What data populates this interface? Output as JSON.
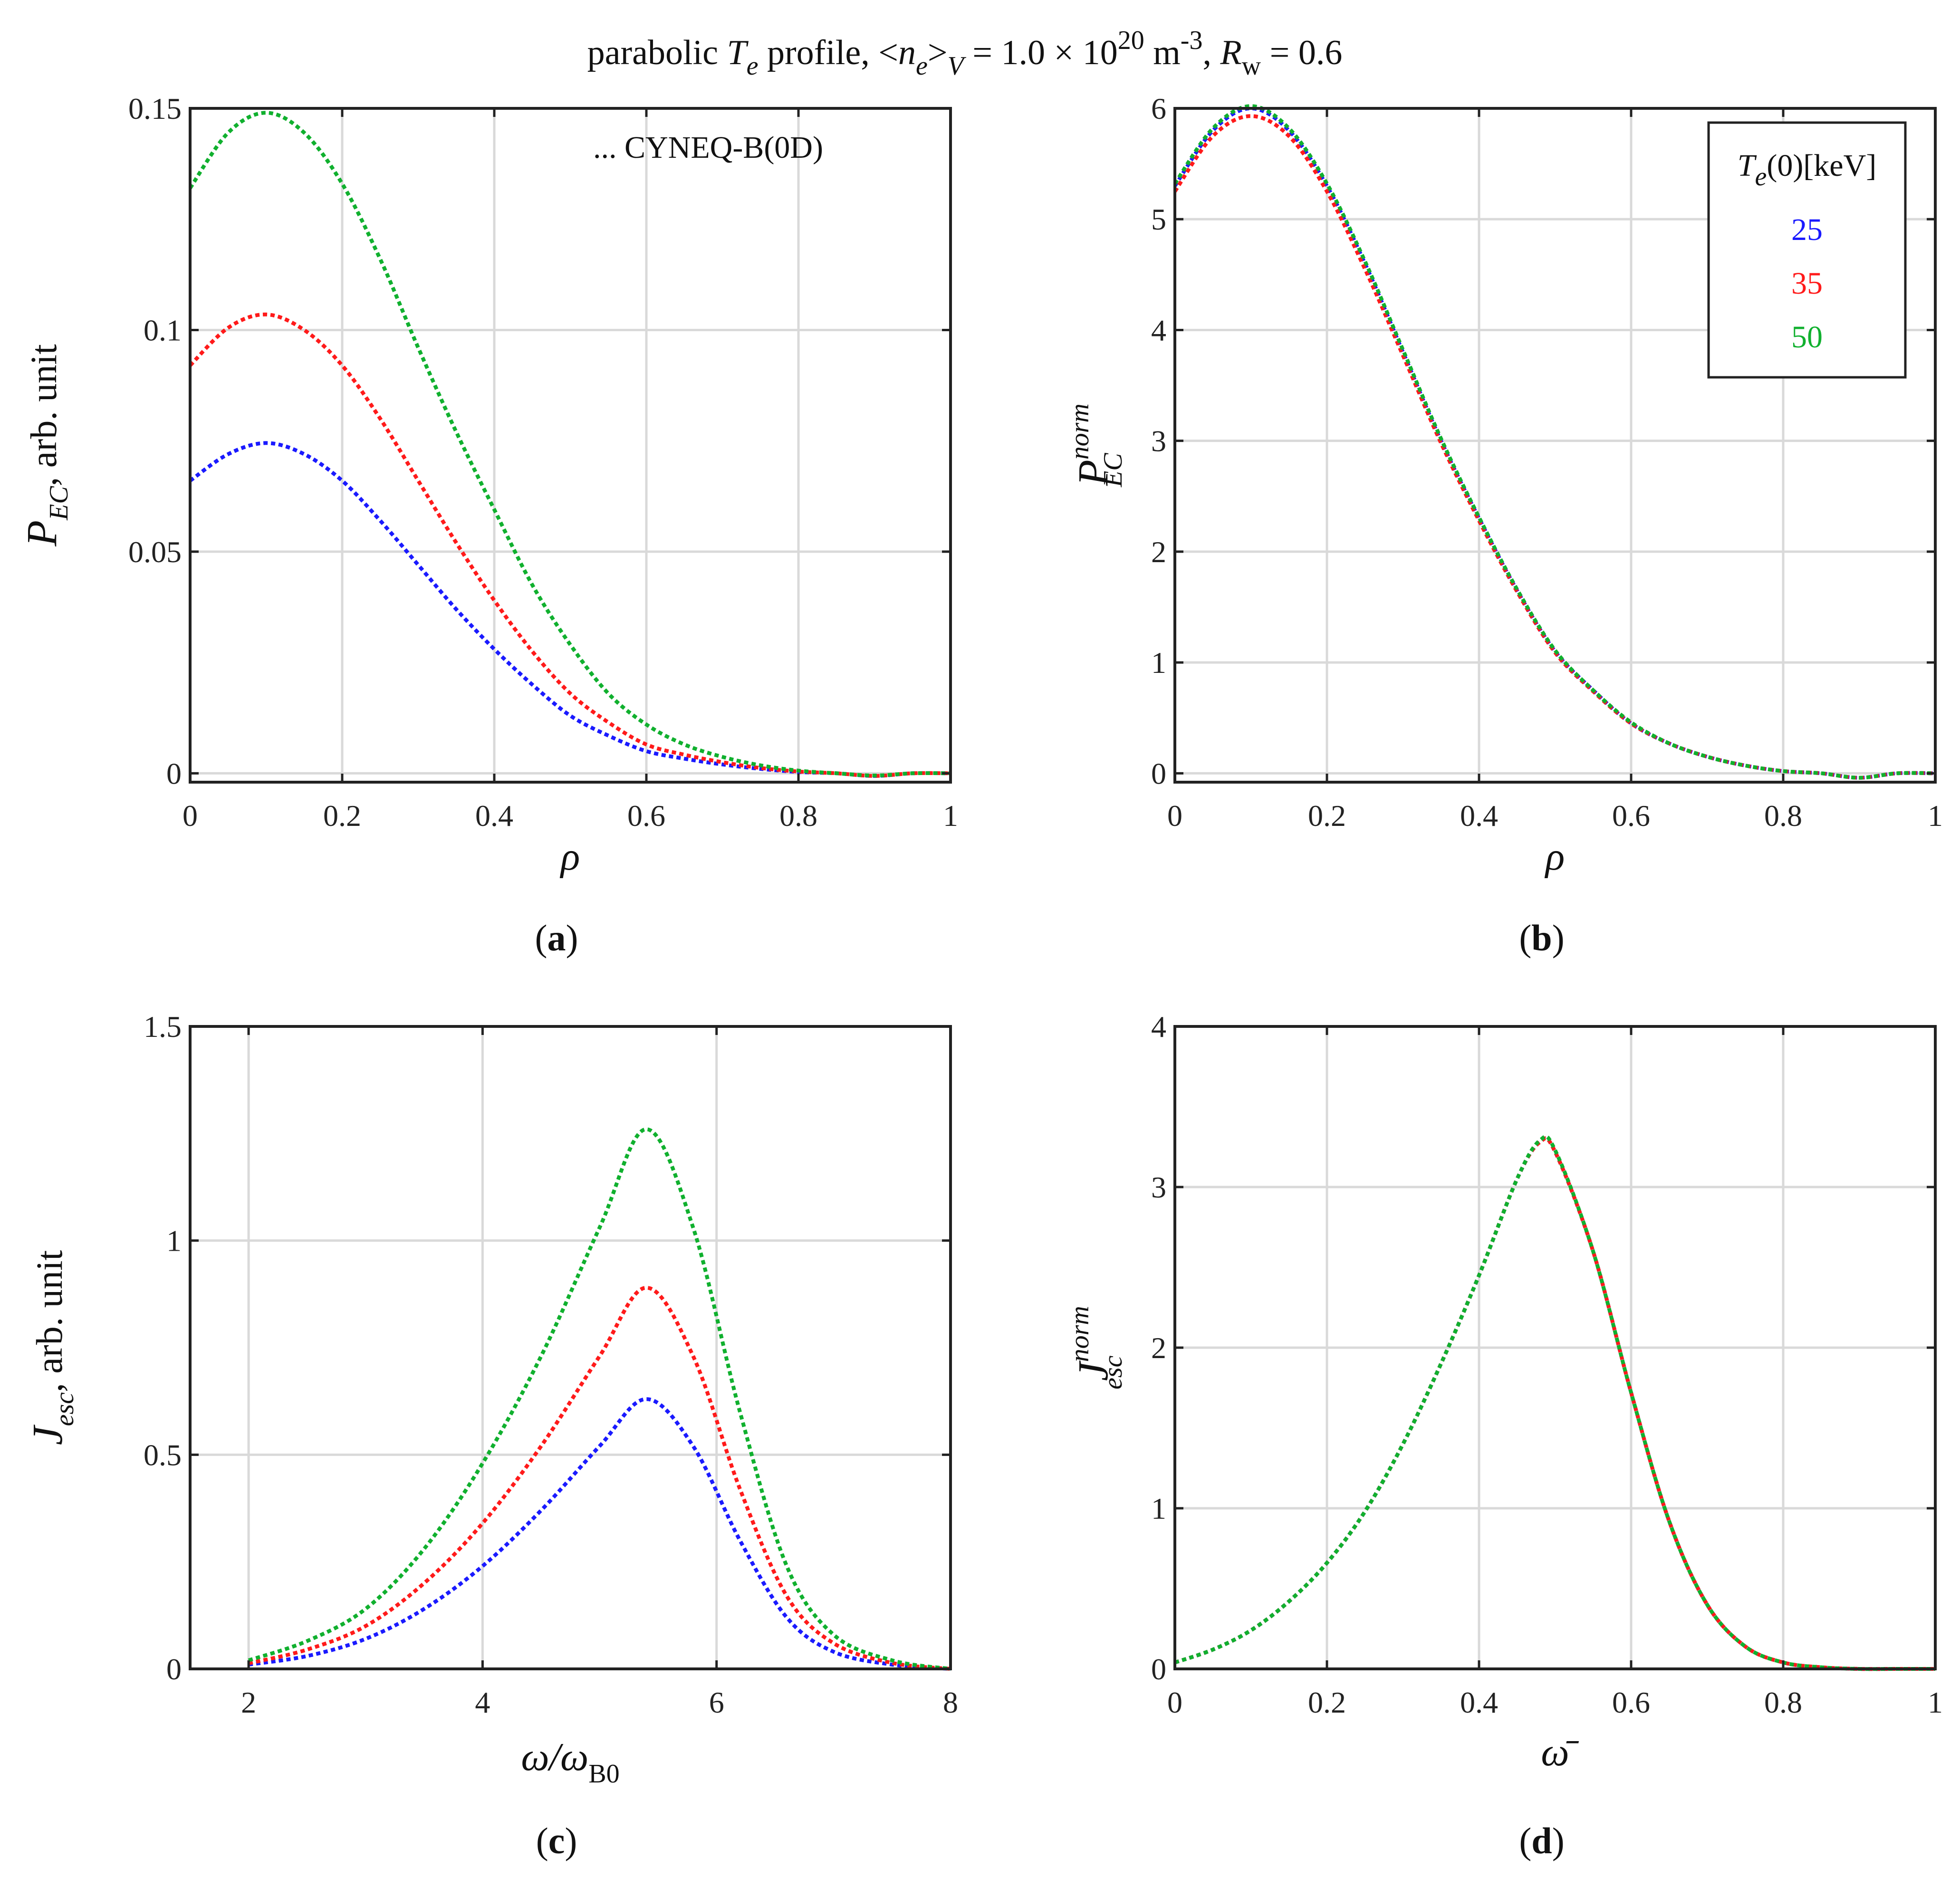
{
  "figure": {
    "title": "parabolic T_e profile, <n_e>_V = 1.0 × 10^20 m^-3, R_w = 0.6",
    "title_parts": {
      "p1": "parabolic ",
      "Te": "T",
      "Te_sub": "e",
      "p2": " profile, <",
      "ne": "n",
      "ne_sub": "e",
      "p3": ">",
      "V": "V",
      "p4": " = 1.0 × 10",
      "exp20": "20",
      "p5": " m",
      "expm3": "-3",
      "p6": ", ",
      "R": "R",
      "w": "w",
      "p7": " = 0.6"
    },
    "annotation_a": "... CYNEQ-B(0D)",
    "legend": {
      "title": "T_e(0)[keV]",
      "title_parts": {
        "T": "T",
        "sub": "e",
        "rest": "(0)[keV]"
      },
      "entries": [
        {
          "label": "25",
          "color": "#1a1aff"
        },
        {
          "label": "35",
          "color": "#ff1a1a"
        },
        {
          "label": "50",
          "color": "#10b02e"
        }
      ]
    },
    "captions": {
      "a": "a",
      "b": "b",
      "c": "c",
      "d": "d"
    }
  },
  "chart_data": [
    {
      "id": "a",
      "type": "line",
      "title": "",
      "xlabel": "ρ",
      "ylabel": "P_EC, arb. unit",
      "ylabel_parts": {
        "P": "P",
        "sub": "EC",
        "rest": ", arb. unit"
      },
      "xlim": [
        0,
        1
      ],
      "ylim": [
        -0.002,
        0.15
      ],
      "xticks": [
        0,
        0.2,
        0.4,
        0.6,
        0.8,
        1
      ],
      "xticklabels": [
        "0",
        "0.2",
        "0.4",
        "0.6",
        "0.8",
        "1"
      ],
      "yticks": [
        0,
        0.05,
        0.1,
        0.15
      ],
      "yticklabels": [
        "0",
        "0.05",
        "0.1",
        "0.15"
      ],
      "grid": true,
      "x": [
        0,
        0.05,
        0.1,
        0.15,
        0.2,
        0.25,
        0.3,
        0.35,
        0.4,
        0.45,
        0.5,
        0.55,
        0.6,
        0.65,
        0.7,
        0.75,
        0.8,
        0.85,
        0.9,
        0.95,
        1.0
      ],
      "series": [
        {
          "name": "25",
          "color": "#1a1aff",
          "values": [
            0.066,
            0.072,
            0.0745,
            0.072,
            0.066,
            0.057,
            0.047,
            0.037,
            0.028,
            0.02,
            0.013,
            0.0085,
            0.005,
            0.0033,
            0.002,
            0.001,
            0.0003,
            0.0,
            -0.0006,
            0.0,
            0.0
          ]
        },
        {
          "name": "35",
          "color": "#ff1a1a",
          "values": [
            0.092,
            0.1005,
            0.1035,
            0.1,
            0.092,
            0.08,
            0.066,
            0.052,
            0.039,
            0.0275,
            0.018,
            0.0115,
            0.0065,
            0.0042,
            0.0025,
            0.0012,
            0.0004,
            0.0,
            -0.0006,
            0.0,
            0.0
          ]
        },
        {
          "name": "50",
          "color": "#10b02e",
          "values": [
            0.132,
            0.1445,
            0.149,
            0.1445,
            0.133,
            0.116,
            0.096,
            0.077,
            0.0595,
            0.0425,
            0.029,
            0.018,
            0.011,
            0.0065,
            0.0037,
            0.0018,
            0.0006,
            0.0,
            -0.0005,
            0.0,
            0.0
          ]
        }
      ]
    },
    {
      "id": "b",
      "type": "line",
      "title": "",
      "xlabel": "ρ",
      "ylabel": "P_EC^norm",
      "ylabel_parts": {
        "P": "P",
        "sub": "EC",
        "sup": "norm"
      },
      "xlim": [
        0,
        1
      ],
      "ylim": [
        -0.08,
        6
      ],
      "xticks": [
        0,
        0.2,
        0.4,
        0.6,
        0.8,
        1
      ],
      "xticklabels": [
        "0",
        "0.2",
        "0.4",
        "0.6",
        "0.8",
        "1"
      ],
      "yticks": [
        0,
        1,
        2,
        3,
        4,
        5,
        6
      ],
      "yticklabels": [
        "0",
        "1",
        "2",
        "3",
        "4",
        "5",
        "6"
      ],
      "grid": true,
      "x": [
        0,
        0.05,
        0.1,
        0.15,
        0.2,
        0.25,
        0.3,
        0.35,
        0.4,
        0.45,
        0.5,
        0.55,
        0.6,
        0.65,
        0.7,
        0.75,
        0.8,
        0.85,
        0.9,
        0.95,
        1.0
      ],
      "series": [
        {
          "name": "25",
          "color": "#1a1aff",
          "values": [
            5.3,
            5.8,
            6.0,
            5.8,
            5.3,
            4.6,
            3.8,
            3.0,
            2.3,
            1.65,
            1.1,
            0.75,
            0.45,
            0.27,
            0.15,
            0.07,
            0.02,
            0.0,
            -0.04,
            0.0,
            0.0
          ]
        },
        {
          "name": "35",
          "color": "#ff1a1a",
          "values": [
            5.25,
            5.75,
            5.93,
            5.75,
            5.25,
            4.55,
            3.77,
            2.98,
            2.28,
            1.64,
            1.09,
            0.74,
            0.45,
            0.27,
            0.15,
            0.07,
            0.02,
            0.0,
            -0.04,
            0.0,
            0.0
          ]
        },
        {
          "name": "50",
          "color": "#10b02e",
          "values": [
            5.32,
            5.82,
            6.02,
            5.82,
            5.32,
            4.62,
            3.82,
            3.02,
            2.31,
            1.66,
            1.11,
            0.75,
            0.46,
            0.27,
            0.15,
            0.07,
            0.02,
            0.0,
            -0.04,
            0.0,
            0.0
          ]
        }
      ]
    },
    {
      "id": "c",
      "type": "line",
      "title": "",
      "xlabel": "ω/ω_B0",
      "xlabel_parts": {
        "w": "ω/ω",
        "sub": "B0"
      },
      "ylabel": "J_esc, arb. unit",
      "ylabel_parts": {
        "J": "J",
        "sub": "esc",
        "rest": ", arb. unit"
      },
      "xlim": [
        1.5,
        8
      ],
      "ylim": [
        0,
        1.5
      ],
      "xticks": [
        2,
        4,
        6,
        8
      ],
      "xticklabels": [
        "2",
        "4",
        "6",
        "8"
      ],
      "yticks": [
        0,
        0.5,
        1,
        1.5
      ],
      "yticklabels": [
        "0",
        "0.5",
        "1",
        "1.5"
      ],
      "grid": true,
      "x": [
        2.0,
        2.5,
        3.0,
        3.5,
        4.0,
        4.5,
        5.0,
        5.4,
        5.8,
        6.2,
        6.6,
        7.0,
        7.5,
        8.0
      ],
      "series": [
        {
          "name": "25",
          "color": "#1a1aff",
          "values": [
            0.01,
            0.03,
            0.07,
            0.14,
            0.24,
            0.37,
            0.52,
            0.63,
            0.52,
            0.3,
            0.12,
            0.04,
            0.01,
            0.0
          ]
        },
        {
          "name": "35",
          "color": "#ff1a1a",
          "values": [
            0.013,
            0.045,
            0.1,
            0.2,
            0.34,
            0.52,
            0.73,
            0.89,
            0.73,
            0.42,
            0.17,
            0.06,
            0.014,
            0.0
          ]
        },
        {
          "name": "50",
          "color": "#10b02e",
          "values": [
            0.02,
            0.065,
            0.14,
            0.28,
            0.48,
            0.73,
            1.03,
            1.26,
            1.03,
            0.6,
            0.24,
            0.08,
            0.02,
            0.0
          ]
        }
      ]
    },
    {
      "id": "d",
      "type": "line",
      "title": "",
      "xlabel": "ω̄",
      "ylabel": "J_esc^norm",
      "ylabel_parts": {
        "J": "J",
        "sub": "esc",
        "sup": "norm"
      },
      "xlim": [
        0,
        1
      ],
      "ylim": [
        0,
        4
      ],
      "xticks": [
        0,
        0.2,
        0.4,
        0.6,
        0.8,
        1
      ],
      "xticklabels": [
        "0",
        "0.2",
        "0.4",
        "0.6",
        "0.8",
        "1"
      ],
      "yticks": [
        0,
        1,
        2,
        3,
        4
      ],
      "yticklabels": [
        "0",
        "1",
        "2",
        "3",
        "4"
      ],
      "grid": true,
      "x": [
        0,
        0.05,
        0.1,
        0.15,
        0.2,
        0.25,
        0.3,
        0.35,
        0.4,
        0.45,
        0.48,
        0.5,
        0.55,
        0.6,
        0.65,
        0.7,
        0.75,
        0.8,
        0.85,
        0.9,
        0.95,
        1.0
      ],
      "series": [
        {
          "name": "25",
          "color": "#1a1aff",
          "values": [
            0.04,
            0.12,
            0.24,
            0.42,
            0.66,
            0.98,
            1.4,
            1.9,
            2.45,
            3.05,
            3.28,
            3.22,
            2.6,
            1.72,
            0.92,
            0.4,
            0.14,
            0.04,
            0.01,
            0.0,
            0.0,
            0.0
          ]
        },
        {
          "name": "35",
          "color": "#ff1a1a",
          "values": [
            0.04,
            0.12,
            0.24,
            0.42,
            0.66,
            0.98,
            1.4,
            1.9,
            2.45,
            3.05,
            3.28,
            3.22,
            2.6,
            1.72,
            0.92,
            0.4,
            0.14,
            0.04,
            0.01,
            0.0,
            0.0,
            0.0
          ]
        },
        {
          "name": "50",
          "color": "#10b02e",
          "values": [
            0.04,
            0.12,
            0.24,
            0.42,
            0.66,
            0.98,
            1.4,
            1.9,
            2.45,
            3.05,
            3.29,
            3.23,
            2.6,
            1.72,
            0.92,
            0.4,
            0.14,
            0.04,
            0.01,
            0.0,
            0.0,
            0.0
          ]
        }
      ]
    }
  ]
}
